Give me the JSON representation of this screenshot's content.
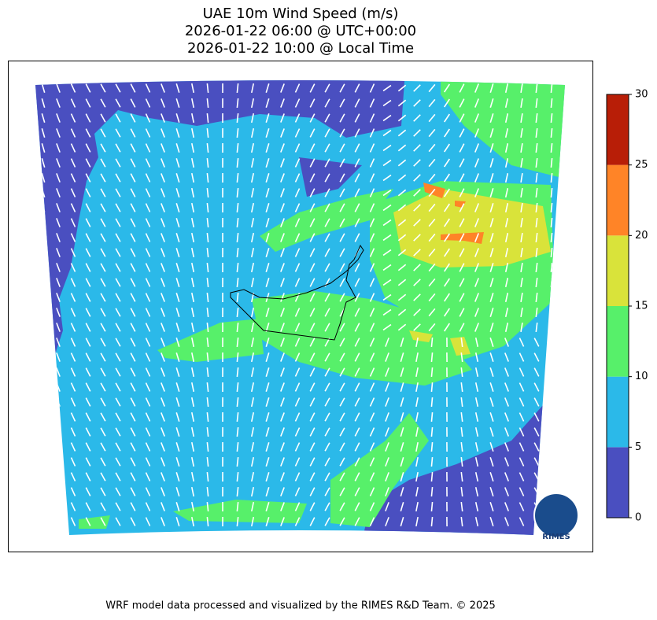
{
  "title": [
    "UAE 10m Wind Speed (m/s)",
    "2026-01-22 06:00 @ UTC+00:00",
    "2026-01-22 10:00 @ Local Time"
  ],
  "colorbar": {
    "levels": [
      0,
      5,
      10,
      15,
      20,
      25,
      30
    ],
    "colors": [
      "#4a4fc0",
      "#2bb9e9",
      "#57f06a",
      "#d9e33a",
      "#ff8427",
      "#b81e07"
    ]
  },
  "logo": "RIMES",
  "footer": "WRF model data processed and visualized by the RIMES R&D Team. © 2025"
}
